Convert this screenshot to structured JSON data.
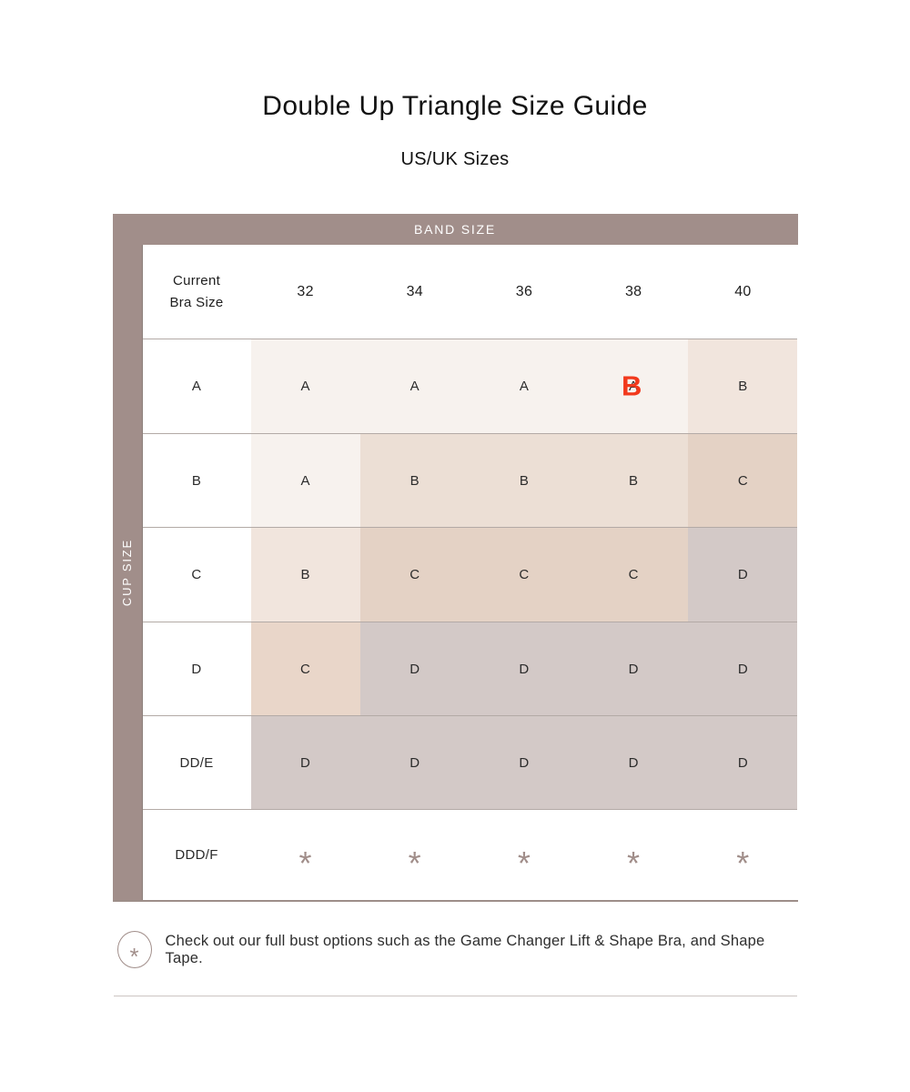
{
  "title": "Double Up Triangle Size Guide",
  "subtitle": "US/UK Sizes",
  "table": {
    "band_axis_label": "BAND SIZE",
    "cup_axis_label": "CUP SIZE",
    "corner_label": "Current\nBra Size",
    "band_sizes": [
      "32",
      "34",
      "36",
      "38",
      "40"
    ],
    "rows": [
      {
        "cup": "A",
        "cells": [
          {
            "v": "A",
            "bg": "cream"
          },
          {
            "v": "A",
            "bg": "cream"
          },
          {
            "v": "A",
            "bg": "cream"
          },
          {
            "v": "A",
            "bg": "cream",
            "note": "B"
          },
          {
            "v": "B",
            "bg": "blush"
          }
        ]
      },
      {
        "cup": "B",
        "cells": [
          {
            "v": "A",
            "bg": "cream"
          },
          {
            "v": "B",
            "bg": "sand"
          },
          {
            "v": "B",
            "bg": "sand"
          },
          {
            "v": "B",
            "bg": "sand"
          },
          {
            "v": "C",
            "bg": "tan"
          }
        ]
      },
      {
        "cup": "C",
        "cells": [
          {
            "v": "B",
            "bg": "blush"
          },
          {
            "v": "C",
            "bg": "tan"
          },
          {
            "v": "C",
            "bg": "tan"
          },
          {
            "v": "C",
            "bg": "tan"
          },
          {
            "v": "D",
            "bg": "taupe"
          }
        ]
      },
      {
        "cup": "D",
        "cells": [
          {
            "v": "C",
            "bg": "clay"
          },
          {
            "v": "D",
            "bg": "taupe"
          },
          {
            "v": "D",
            "bg": "taupe"
          },
          {
            "v": "D",
            "bg": "taupe"
          },
          {
            "v": "D",
            "bg": "taupe"
          }
        ]
      },
      {
        "cup": "DD/E",
        "cells": [
          {
            "v": "D",
            "bg": "taupe"
          },
          {
            "v": "D",
            "bg": "taupe"
          },
          {
            "v": "D",
            "bg": "taupe"
          },
          {
            "v": "D",
            "bg": "taupe"
          },
          {
            "v": "D",
            "bg": "taupe"
          }
        ]
      },
      {
        "cup": "DDD/F",
        "cells": [
          {
            "v": "*",
            "bg": "white"
          },
          {
            "v": "*",
            "bg": "white"
          },
          {
            "v": "*",
            "bg": "white"
          },
          {
            "v": "*",
            "bg": "white"
          },
          {
            "v": "*",
            "bg": "white"
          }
        ]
      }
    ]
  },
  "annotation": {
    "text": "B",
    "color": "#f2391c",
    "location": "cup A / band 38 cell"
  },
  "footnote": {
    "icon": "asterisk-in-circle",
    "text": "Check out our full bust options such as the Game Changer Lift & Shape Bra, and Shape Tape."
  },
  "colors": {
    "header_bar": "#a18e8a",
    "cream": "#f7f2ee",
    "blush": "#f1e5dd",
    "sand": "#ecdfd5",
    "tan": "#e4d2c5",
    "clay": "#e9d6c9",
    "taupe": "#d3c9c7",
    "asterisk": "#a18e8a",
    "row_line": "#b3aaa6",
    "annotation_red": "#f2391c"
  },
  "chart_data": {
    "type": "table",
    "title": "Double Up Triangle Size Guide",
    "subtitle": "US/UK Sizes",
    "column_axis_title": "BAND SIZE",
    "row_axis_title": "CUP SIZE",
    "columns": [
      "Current Bra Size",
      "32",
      "34",
      "36",
      "38",
      "40"
    ],
    "rows": [
      [
        "A",
        "A",
        "A",
        "A",
        "A",
        "B"
      ],
      [
        "B",
        "A",
        "B",
        "B",
        "B",
        "C"
      ],
      [
        "C",
        "B",
        "C",
        "C",
        "C",
        "D"
      ],
      [
        "D",
        "C",
        "D",
        "D",
        "D",
        "D"
      ],
      [
        "DD/E",
        "D",
        "D",
        "D",
        "D",
        "D"
      ],
      [
        "DDD/F",
        "*",
        "*",
        "*",
        "*",
        "*"
      ]
    ],
    "annotations": [
      "Bright red letter B overlaid on the cup A / band 38 cell"
    ],
    "footnote": "* Check out our full bust options such as the Game Changer Lift & Shape Bra, and Shape Tape."
  }
}
